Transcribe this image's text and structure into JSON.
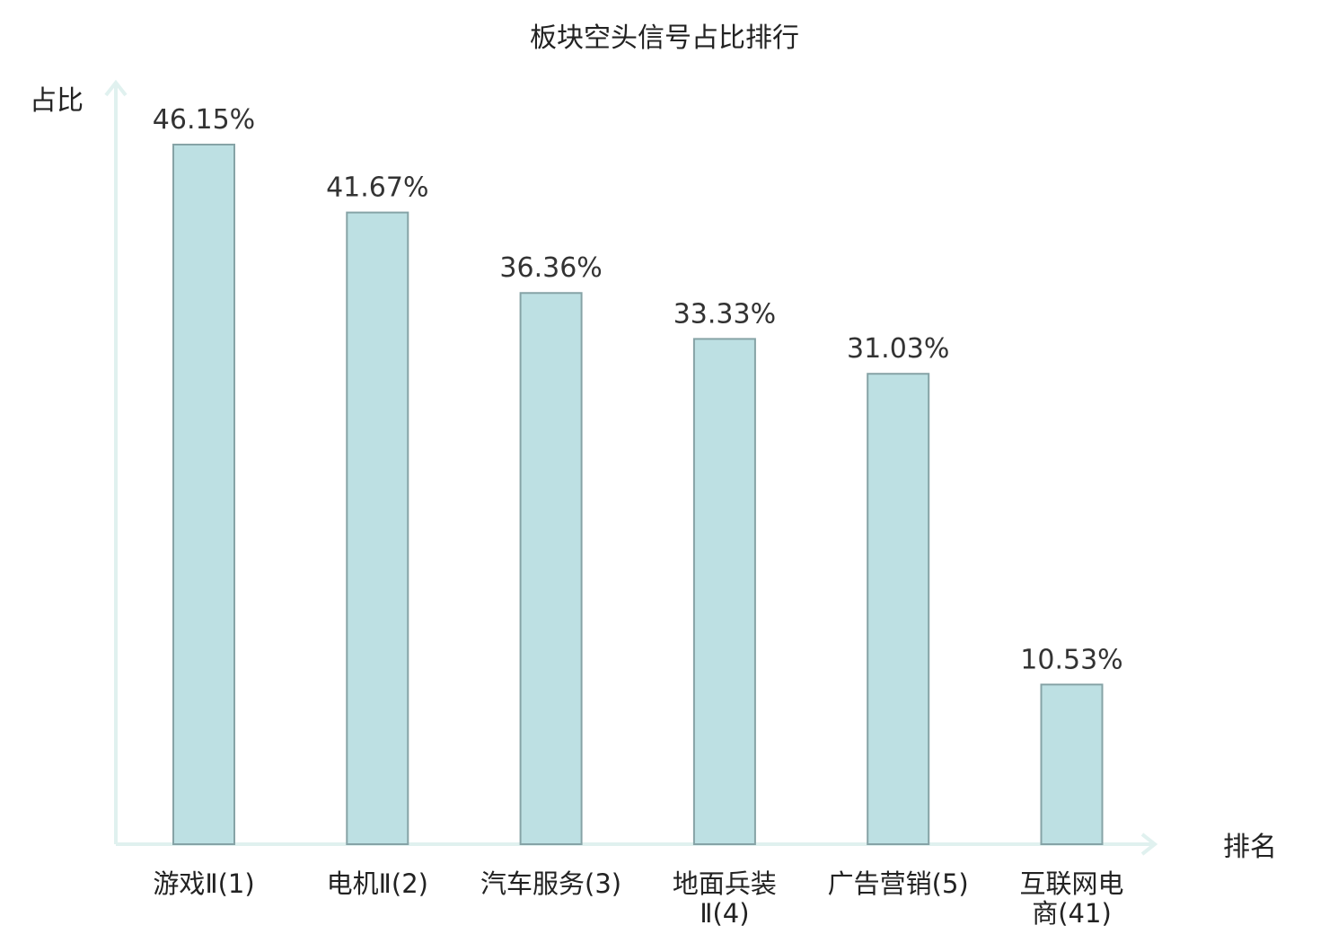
{
  "chart_data": {
    "type": "bar",
    "title": "板块空头信号占比排行",
    "ylabel": "占比",
    "xlabel": "排名",
    "categories": [
      [
        "游戏Ⅱ(1)"
      ],
      [
        "电机Ⅱ(2)"
      ],
      [
        "汽车服务(3)"
      ],
      [
        "地面兵装",
        "Ⅱ(4)"
      ],
      [
        "广告营销(5)"
      ],
      [
        "互联网电",
        "商(41)"
      ]
    ],
    "values": [
      46.15,
      41.67,
      36.36,
      33.33,
      31.03,
      10.53
    ],
    "data_labels": [
      "46.15%",
      "41.67%",
      "36.36%",
      "33.33%",
      "31.03%",
      "10.53%"
    ],
    "ylim": [
      0,
      50
    ],
    "grid": false,
    "colors": {
      "bar_fill": "#bde0e3",
      "bar_stroke": "#86a3a6",
      "axis": "#e0f1ef",
      "highlight_label": "#e8111a",
      "normal_label": "#222222"
    },
    "highlight_index": 5
  }
}
